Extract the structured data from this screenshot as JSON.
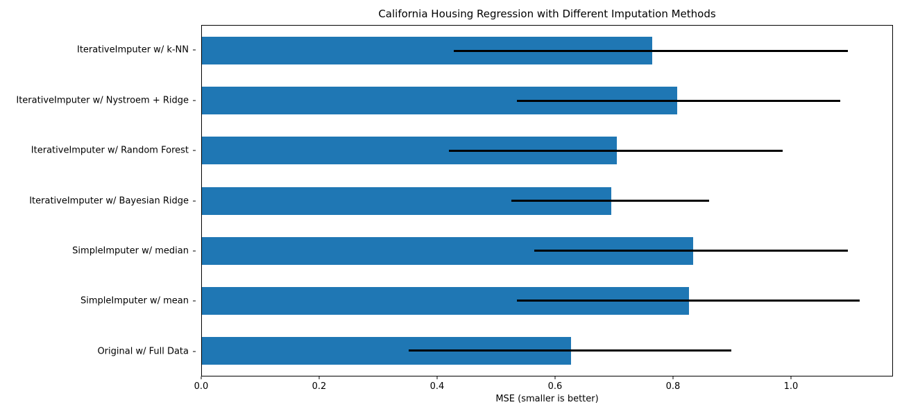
{
  "chart_data": {
    "type": "bar",
    "orientation": "horizontal",
    "title": "California Housing Regression with Different Imputation Methods",
    "xlabel": "MSE (smaller is better)",
    "ylabel": "",
    "xlim": [
      0,
      1.173
    ],
    "xticks": [
      0.0,
      0.2,
      0.4,
      0.6,
      0.8,
      1.0
    ],
    "grid": false,
    "legend": null,
    "bar_color": "#1f77b4",
    "error_bar_color": "#000000",
    "rows_top_to_bottom": [
      {
        "label": "IterativeImputer w/ k-NN",
        "mse": 0.765,
        "err_low": 0.428,
        "err_high": 1.098
      },
      {
        "label": "IterativeImputer w/ Nystroem + Ridge",
        "mse": 0.808,
        "err_low": 0.535,
        "err_high": 1.084
      },
      {
        "label": "IterativeImputer w/ Random Forest",
        "mse": 0.705,
        "err_low": 0.42,
        "err_high": 0.987
      },
      {
        "label": "IterativeImputer w/ Bayesian Ridge",
        "mse": 0.695,
        "err_low": 0.526,
        "err_high": 0.862
      },
      {
        "label": "SimpleImputer w/ median",
        "mse": 0.835,
        "err_low": 0.565,
        "err_high": 1.098
      },
      {
        "label": "SimpleImputer w/ mean",
        "mse": 0.828,
        "err_low": 0.535,
        "err_high": 1.118
      },
      {
        "label": "Original w/ Full Data",
        "mse": 0.627,
        "err_low": 0.351,
        "err_high": 0.899
      }
    ]
  }
}
